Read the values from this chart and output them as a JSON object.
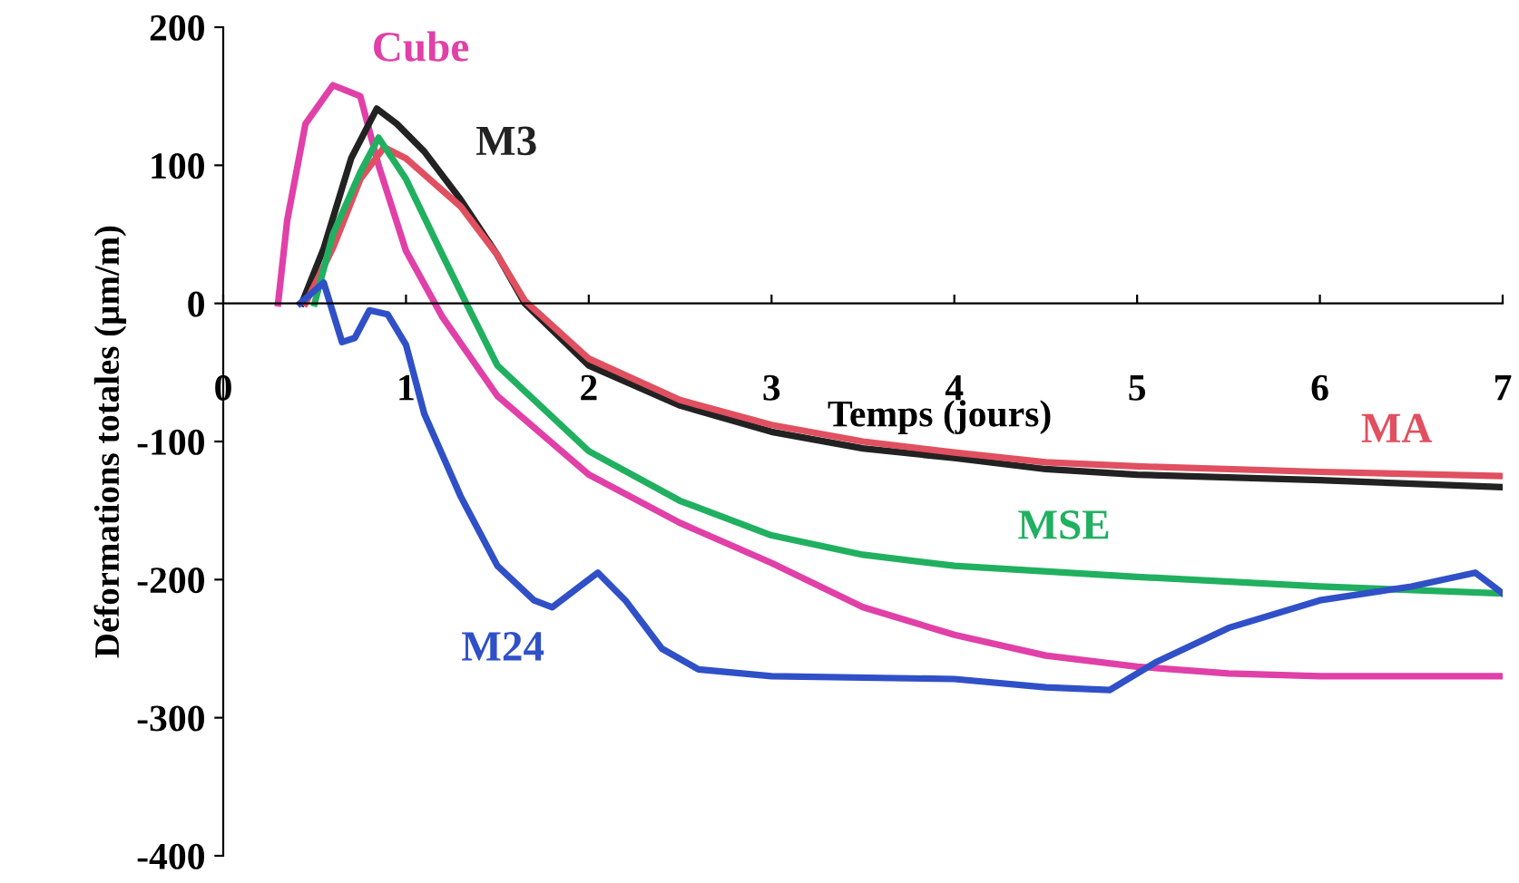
{
  "chart_data": {
    "type": "line",
    "xlabel": "Temps (jours)",
    "ylabel": "Déformations totales (µm/m)",
    "xlim": [
      0,
      7
    ],
    "xticks": [
      0,
      1,
      2,
      3,
      4,
      5,
      6,
      7
    ],
    "ylim": [
      -400,
      200
    ],
    "yticks": [
      -400,
      -300,
      -200,
      -100,
      0,
      100,
      200
    ],
    "grid": false,
    "legend": false,
    "marker": "none",
    "line_style": "solid",
    "series": [
      {
        "name": "Cube",
        "color": "#e040a8",
        "x": [
          0.3,
          0.35,
          0.45,
          0.6,
          0.75,
          0.85,
          1.0,
          1.2,
          1.5,
          2.0,
          2.5,
          3.0,
          3.5,
          4.0,
          4.5,
          5.0,
          5.5,
          6.0,
          7.0
        ],
        "values": [
          0,
          60,
          130,
          158,
          150,
          100,
          38,
          -10,
          -67,
          -124,
          -159,
          -188,
          -220,
          -240,
          -255,
          -263,
          -268,
          -270,
          -270
        ]
      },
      {
        "name": "M3",
        "color": "#222222",
        "x": [
          0.43,
          0.55,
          0.7,
          0.84,
          0.95,
          1.1,
          1.3,
          1.5,
          1.65,
          2.0,
          2.5,
          3.0,
          3.5,
          4.0,
          4.5,
          5.0,
          6.0,
          7.0
        ],
        "values": [
          0,
          40,
          105,
          141,
          130,
          110,
          75,
          35,
          0,
          -45,
          -74,
          -93,
          -105,
          -112,
          -120,
          -124,
          -128,
          -133
        ]
      },
      {
        "name": "MA",
        "color": "#e05060",
        "x": [
          0.45,
          0.6,
          0.75,
          0.88,
          1.0,
          1.3,
          1.5,
          1.65,
          2.0,
          2.5,
          3.0,
          3.5,
          4.0,
          4.5,
          5.0,
          6.0,
          7.0
        ],
        "values": [
          0,
          40,
          90,
          113,
          105,
          70,
          35,
          2,
          -40,
          -70,
          -88,
          -100,
          -108,
          -115,
          -118,
          -122,
          -125
        ]
      },
      {
        "name": "MSE",
        "color": "#20b060",
        "x": [
          0.5,
          0.6,
          0.75,
          0.85,
          1.0,
          1.2,
          1.33,
          1.5,
          2.0,
          2.5,
          3.0,
          3.5,
          4.0,
          5.0,
          6.0,
          7.0
        ],
        "values": [
          0,
          50,
          95,
          120,
          90,
          35,
          0,
          -45,
          -107,
          -143,
          -168,
          -182,
          -190,
          -198,
          -205,
          -210
        ]
      },
      {
        "name": "M24",
        "color": "#3050c8",
        "x": [
          0.42,
          0.55,
          0.65,
          0.72,
          0.8,
          0.9,
          1.0,
          1.1,
          1.3,
          1.5,
          1.7,
          1.8,
          1.95,
          2.05,
          2.2,
          2.4,
          2.6,
          3.0,
          4.0,
          4.5,
          4.85,
          5.1,
          5.5,
          6.0,
          6.5,
          6.85,
          7.0
        ],
        "values": [
          0,
          15,
          -28,
          -25,
          -5,
          -8,
          -30,
          -80,
          -140,
          -190,
          -215,
          -220,
          -205,
          -195,
          -215,
          -250,
          -265,
          -270,
          -272,
          -278,
          -280,
          -260,
          -235,
          -215,
          -205,
          -195,
          -210
        ]
      }
    ]
  }
}
